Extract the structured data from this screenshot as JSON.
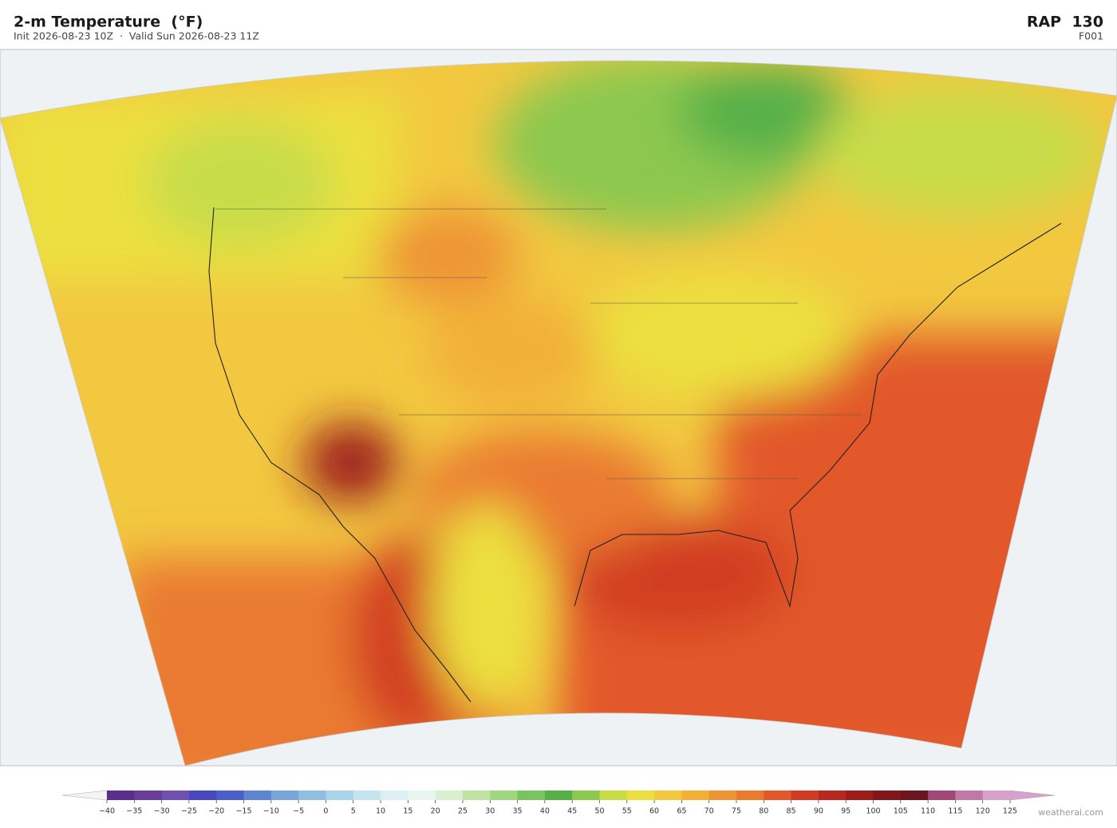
{
  "header": {
    "title": "2-m Temperature  (°F)",
    "subtitle": "Init 2026-08-23 10Z  ·  Valid Sun 2026-08-23 11Z",
    "model": "RAP  130",
    "forecast": "F001"
  },
  "colorbar": {
    "ticks": [
      {
        "value": -40,
        "label": "−40"
      },
      {
        "value": -35,
        "label": "−35"
      },
      {
        "value": -30,
        "label": "−30"
      },
      {
        "value": -25,
        "label": "−25"
      },
      {
        "value": -20,
        "label": "−20"
      },
      {
        "value": -15,
        "label": "−15"
      },
      {
        "value": -10,
        "label": "−10"
      },
      {
        "value": -5,
        "label": "−5"
      },
      0,
      5,
      10,
      15,
      20,
      25,
      30,
      35,
      40,
      45,
      50,
      55,
      60,
      65,
      70,
      75,
      80,
      85,
      90,
      95,
      100,
      105,
      110,
      115,
      120,
      125
    ],
    "colors": [
      "#5b2d8e",
      "#6a3d9a",
      "#7050b0",
      "#4848c0",
      "#4a60c8",
      "#5f85d0",
      "#7aa5d8",
      "#90bde0",
      "#a8d4ea",
      "#c4e4f0",
      "#dcf0f4",
      "#e8f6ee",
      "#d8efd0",
      "#c0e4a0",
      "#a0d680",
      "#78c460",
      "#56b048",
      "#8cc850",
      "#c8dc48",
      "#ece040",
      "#f2c840",
      "#f2b038",
      "#ee9434",
      "#ea7a30",
      "#e2582a",
      "#d23c24",
      "#b8281e",
      "#9c1c1a",
      "#82161a",
      "#6c1420",
      "#a04878",
      "#c078a8",
      "#d8a0cc"
    ],
    "under_color": "#f4f4f4",
    "over_color": "#d8a0cc"
  },
  "footer": {
    "credit": "weatherai.com"
  }
}
